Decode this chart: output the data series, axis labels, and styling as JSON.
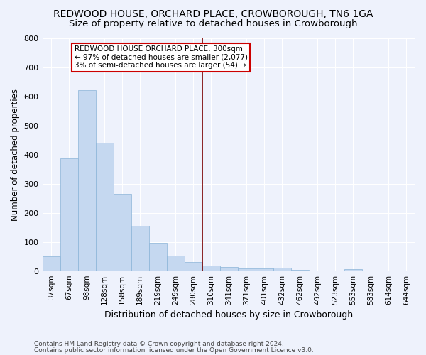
{
  "title": "REDWOOD HOUSE, ORCHARD PLACE, CROWBOROUGH, TN6 1GA",
  "subtitle": "Size of property relative to detached houses in Crowborough",
  "xlabel": "Distribution of detached houses by size in Crowborough",
  "ylabel": "Number of detached properties",
  "categories": [
    "37sqm",
    "67sqm",
    "98sqm",
    "128sqm",
    "158sqm",
    "189sqm",
    "219sqm",
    "249sqm",
    "280sqm",
    "310sqm",
    "341sqm",
    "371sqm",
    "401sqm",
    "432sqm",
    "462sqm",
    "492sqm",
    "523sqm",
    "553sqm",
    "583sqm",
    "614sqm",
    "644sqm"
  ],
  "values": [
    50,
    388,
    622,
    440,
    265,
    155,
    97,
    53,
    30,
    18,
    13,
    10,
    10,
    12,
    5,
    1,
    0,
    6,
    0,
    0,
    0
  ],
  "bar_color": "#c5d8f0",
  "bar_edge_color": "#8ab4d8",
  "vline_x_index": 9,
  "vline_color": "#7a0000",
  "annotation_lines": [
    "REDWOOD HOUSE ORCHARD PLACE: 300sqm",
    "← 97% of detached houses are smaller (2,077)",
    "3% of semi-detached houses are larger (54) →"
  ],
  "annotation_box_facecolor": "#ffffff",
  "annotation_box_edgecolor": "#cc0000",
  "ylim": [
    0,
    800
  ],
  "yticks": [
    0,
    100,
    200,
    300,
    400,
    500,
    600,
    700,
    800
  ],
  "bg_color": "#eef2fc",
  "plot_bg_color": "#eef2fc",
  "grid_color": "#ffffff",
  "footer1": "Contains HM Land Registry data © Crown copyright and database right 2024.",
  "footer2": "Contains public sector information licensed under the Open Government Licence v3.0.",
  "title_fontsize": 10,
  "subtitle_fontsize": 9.5,
  "ylabel_fontsize": 8.5,
  "xlabel_fontsize": 9,
  "tick_fontsize": 8,
  "xtick_fontsize": 7.5,
  "ann_fontsize": 7.5,
  "footer_fontsize": 6.5
}
